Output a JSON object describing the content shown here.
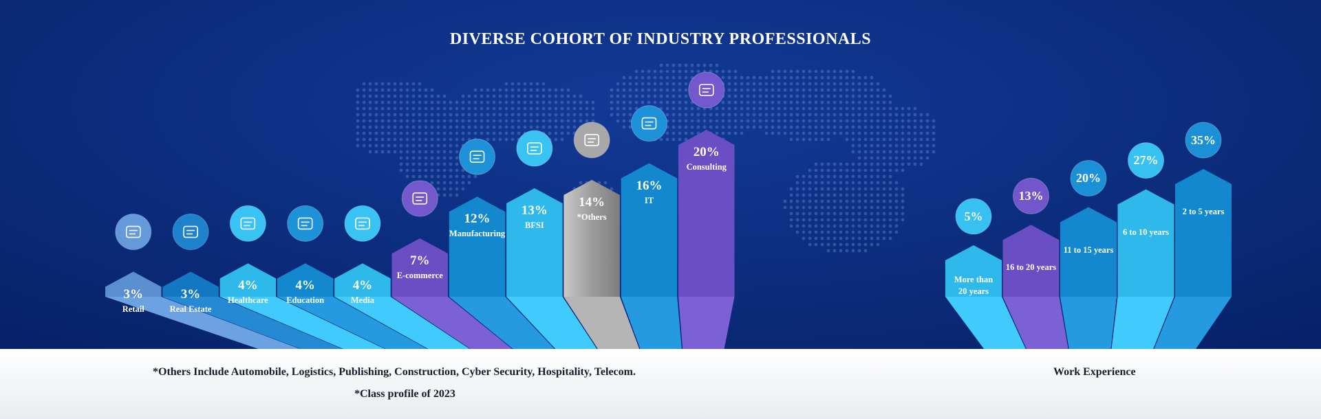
{
  "title": "DIVERSE COHORT OF INDUSTRY PROFESSIONALS",
  "footnotes": {
    "others": "*Others Include Automobile, Logistics, Publishing, Construction, Cyber Security, Hospitality, Telecom.",
    "class_profile": "*Class profile of 2023",
    "work_experience": "Work Experience"
  },
  "colors": {
    "background": "#0a2a78",
    "light_blue": "#29b6ec",
    "mid_blue": "#1588cf",
    "purple": "#6a4fc4",
    "gray": "#9a9a9a",
    "footer": "#eef1f4"
  },
  "chart_data": [
    {
      "type": "bar",
      "title": "DIVERSE COHORT OF INDUSTRY PROFESSIONALS",
      "unit": "%",
      "categories": [
        "Retail",
        "Real Estate",
        "Healthcare",
        "Education",
        "Media",
        "E-commerce",
        "Manufacturing",
        "BFSI",
        "*Others",
        "IT",
        "Consulting"
      ],
      "values": [
        3,
        3,
        4,
        4,
        4,
        7,
        12,
        13,
        14,
        16,
        20
      ],
      "labels": [
        "3%",
        "3%",
        "4%",
        "4%",
        "4%",
        "7%",
        "12%",
        "13%",
        "14%",
        "16%",
        "20%"
      ],
      "icons": [
        "shop-icon",
        "building-icon",
        "handshake-icon",
        "graduation-cap-icon",
        "stethoscope-icon",
        "globe-icon",
        "factory-icon",
        "document-icon",
        "excavator-icon",
        "gear-network-icon",
        "gear-hand-icon"
      ],
      "bar_colors": [
        "#5a8fd0",
        "#1377c2",
        "#2fb8ea",
        "#1488cf",
        "#2fb8ea",
        "#6a4fc4",
        "#1488cf",
        "#2fb8ea",
        "#9a9a9a",
        "#1488cf",
        "#6a4fc4"
      ]
    },
    {
      "type": "bar",
      "title": "Work Experience",
      "unit": "%",
      "categories": [
        "More than 20 years",
        "16 to 20 years",
        "11 to 15 years",
        "6 to 10 years",
        "2 to 5 years"
      ],
      "label_lines": [
        [
          "More than",
          "20 years"
        ],
        [
          "16 to 20 years"
        ],
        [
          "11 to 15 years"
        ],
        [
          "6 to 10 years"
        ],
        [
          "2 to 5 years"
        ]
      ],
      "values": [
        5,
        13,
        20,
        27,
        35
      ],
      "labels": [
        "5%",
        "13%",
        "20%",
        "27%",
        "35%"
      ],
      "bar_colors": [
        "#2fb8ea",
        "#6a4fc4",
        "#1488cf",
        "#2fb8ea",
        "#1488cf"
      ]
    }
  ]
}
